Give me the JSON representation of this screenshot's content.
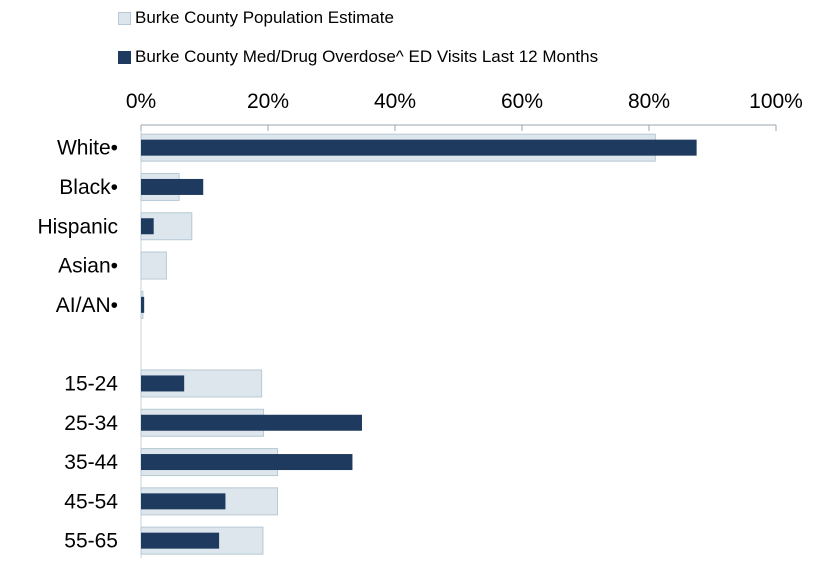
{
  "chart_data": {
    "type": "bar",
    "orientation": "horizontal",
    "categories": [
      "White•",
      "Black•",
      "Hispanic",
      "Asian•",
      "AI/AN•",
      "",
      "15-24",
      "25-34",
      "35-44",
      "45-54",
      "55-65"
    ],
    "series": [
      {
        "name": "Burke County Population Estimate",
        "color": "#dce6ec",
        "border": "#b7c9d6",
        "values": [
          81,
          6,
          8,
          4,
          0.3,
          null,
          19,
          19.3,
          21.5,
          21.5,
          19.2
        ]
      },
      {
        "name": "Burke County Med/Drug Overdose^ ED Visits Last 12 Months",
        "color": "#1f3a5f",
        "values": [
          87.5,
          9.8,
          2,
          0,
          0.5,
          null,
          6.8,
          34.8,
          33.3,
          13.3,
          12.3
        ]
      }
    ],
    "xlim": [
      0,
      100
    ],
    "xticks": [
      "0%",
      "20%",
      "40%",
      "60%",
      "80%",
      "100%"
    ],
    "xaxis_position": "top",
    "legend_position": "top",
    "grid": false
  }
}
